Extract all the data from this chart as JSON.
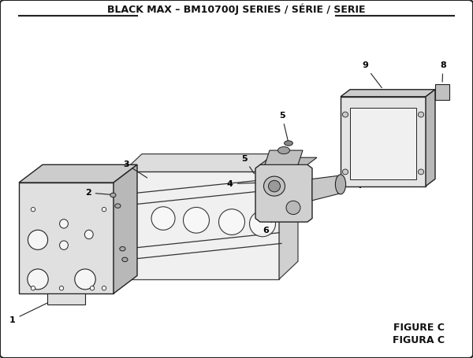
{
  "title": "BLACK MAX – BM10700J SERIES / SÉRIE / SERIE",
  "figure_label": "FIGURE C",
  "figura_label": "FIGURA C",
  "bg_color": "#ffffff",
  "border_color": "#222222",
  "line_color": "#333333",
  "title_fontsize": 9,
  "label_fontsize": 8,
  "fig_label_fontsize": 9
}
